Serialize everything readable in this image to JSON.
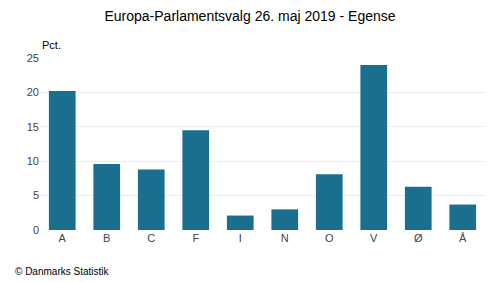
{
  "chart_data": {
    "type": "bar",
    "title": "Europa-Parlamentsvalg 26. maj 2019 - Egense",
    "ylabel": "Pct.",
    "annotations": [
      "© Danmarks Statistik"
    ],
    "categories": [
      "A",
      "B",
      "C",
      "F",
      "I",
      "N",
      "O",
      "V",
      "Ø",
      "Å"
    ],
    "values": [
      20.2,
      9.6,
      8.8,
      14.5,
      2.1,
      3.0,
      8.1,
      24.0,
      6.3,
      3.7
    ],
    "color": "#1a6e8e",
    "ylim": [
      0,
      25
    ],
    "yticks": [
      0,
      5,
      10,
      15,
      20,
      25
    ],
    "grid": true
  }
}
